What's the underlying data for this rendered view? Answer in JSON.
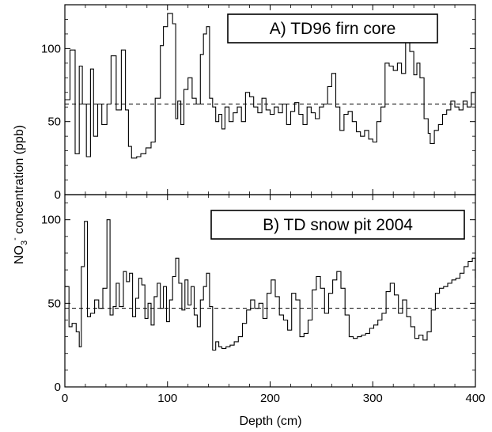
{
  "figure": {
    "ylabel_main": "NO",
    "ylabel_sub": "3",
    "ylabel_sup": "-",
    "ylabel_rest": " concentration (ppb)",
    "xlabel": "Depth (cm)"
  },
  "chart_data": [
    {
      "type": "line",
      "step": true,
      "title": "A) TD96 firn core",
      "xlabel": "Depth (cm)",
      "ylabel": "NO3- concentration (ppb)",
      "xlim": [
        0,
        400
      ],
      "ylim": [
        0,
        130
      ],
      "xticks": [
        0,
        100,
        200,
        300,
        400
      ],
      "yticks": [
        0,
        50,
        100
      ],
      "mean_line": 62,
      "x": [
        0,
        5,
        10,
        14,
        17,
        21,
        25,
        28,
        32,
        36,
        41,
        45,
        50,
        55,
        59,
        62,
        65,
        70,
        74,
        79,
        84,
        88,
        93,
        96,
        100,
        105,
        108,
        110,
        113,
        116,
        120,
        124,
        128,
        132,
        135,
        138,
        141,
        144,
        147,
        150,
        153,
        156,
        160,
        164,
        168,
        172,
        176,
        180,
        184,
        188,
        192,
        196,
        200,
        204,
        208,
        212,
        216,
        220,
        224,
        228,
        232,
        236,
        240,
        244,
        248,
        252,
        256,
        260,
        264,
        268,
        272,
        276,
        280,
        284,
        288,
        292,
        296,
        300,
        304,
        308,
        312,
        316,
        320,
        324,
        328,
        332,
        336,
        340,
        343,
        346,
        350,
        354,
        356,
        360,
        364,
        368,
        372,
        376,
        380,
        384,
        388,
        392,
        396,
        400
      ],
      "y": [
        65,
        99,
        28,
        88,
        62,
        26,
        86,
        40,
        62,
        48,
        62,
        95,
        58,
        99,
        58,
        33,
        25,
        26,
        28,
        32,
        36,
        66,
        102,
        115,
        124,
        117,
        52,
        64,
        48,
        72,
        80,
        66,
        62,
        96,
        110,
        115,
        66,
        60,
        50,
        55,
        45,
        60,
        50,
        56,
        60,
        50,
        70,
        67,
        60,
        56,
        66,
        58,
        55,
        60,
        56,
        62,
        48,
        57,
        63,
        55,
        48,
        60,
        56,
        52,
        60,
        62,
        74,
        83,
        60,
        44,
        55,
        57,
        50,
        43,
        40,
        44,
        38,
        36,
        50,
        60,
        90,
        88,
        85,
        90,
        83,
        120,
        98,
        82,
        90,
        80,
        52,
        42,
        35,
        44,
        48,
        55,
        58,
        64,
        60,
        58,
        64,
        60,
        70,
        70
      ]
    },
    {
      "type": "line",
      "step": true,
      "title": "B) TD snow pit 2004",
      "xlabel": "Depth (cm)",
      "ylabel": "NO3- concentration (ppb)",
      "xlim": [
        0,
        400
      ],
      "ylim": [
        0,
        115
      ],
      "xticks": [
        0,
        100,
        200,
        300,
        400
      ],
      "yticks": [
        0,
        50,
        100
      ],
      "mean_line": 47,
      "x": [
        0,
        4,
        7,
        11,
        14,
        16,
        19,
        22,
        25,
        29,
        33,
        37,
        41,
        44,
        47,
        50,
        53,
        57,
        60,
        63,
        66,
        69,
        72,
        75,
        78,
        81,
        84,
        87,
        90,
        93,
        96,
        99,
        102,
        105,
        108,
        111,
        114,
        117,
        120,
        123,
        126,
        129,
        132,
        135,
        138,
        141,
        144,
        147,
        150,
        153,
        157,
        161,
        165,
        169,
        173,
        177,
        181,
        185,
        189,
        193,
        197,
        201,
        205,
        209,
        213,
        217,
        221,
        225,
        229,
        233,
        237,
        241,
        245,
        249,
        253,
        257,
        261,
        265,
        269,
        273,
        277,
        281,
        285,
        289,
        293,
        297,
        301,
        305,
        309,
        313,
        317,
        321,
        325,
        329,
        333,
        337,
        341,
        345,
        349,
        353,
        357,
        361,
        365,
        369,
        373,
        377,
        381,
        385,
        389,
        393,
        397,
        400
      ],
      "y": [
        60,
        36,
        38,
        33,
        24,
        72,
        99,
        42,
        44,
        52,
        47,
        59,
        100,
        43,
        48,
        62,
        48,
        69,
        63,
        68,
        42,
        53,
        65,
        61,
        41,
        50,
        37,
        54,
        62,
        47,
        60,
        39,
        52,
        66,
        77,
        62,
        46,
        64,
        49,
        60,
        43,
        36,
        52,
        60,
        68,
        48,
        22,
        27,
        24,
        23,
        24,
        25,
        27,
        30,
        38,
        46,
        52,
        47,
        50,
        41,
        56,
        64,
        54,
        43,
        40,
        34,
        56,
        52,
        30,
        32,
        40,
        58,
        66,
        59,
        44,
        56,
        64,
        69,
        59,
        43,
        30,
        29,
        30,
        31,
        32,
        35,
        37,
        40,
        44,
        57,
        62,
        55,
        44,
        52,
        42,
        36,
        29,
        31,
        28,
        33,
        46,
        56,
        59,
        60,
        62,
        64,
        65,
        68,
        72,
        75,
        77,
        65
      ]
    }
  ]
}
